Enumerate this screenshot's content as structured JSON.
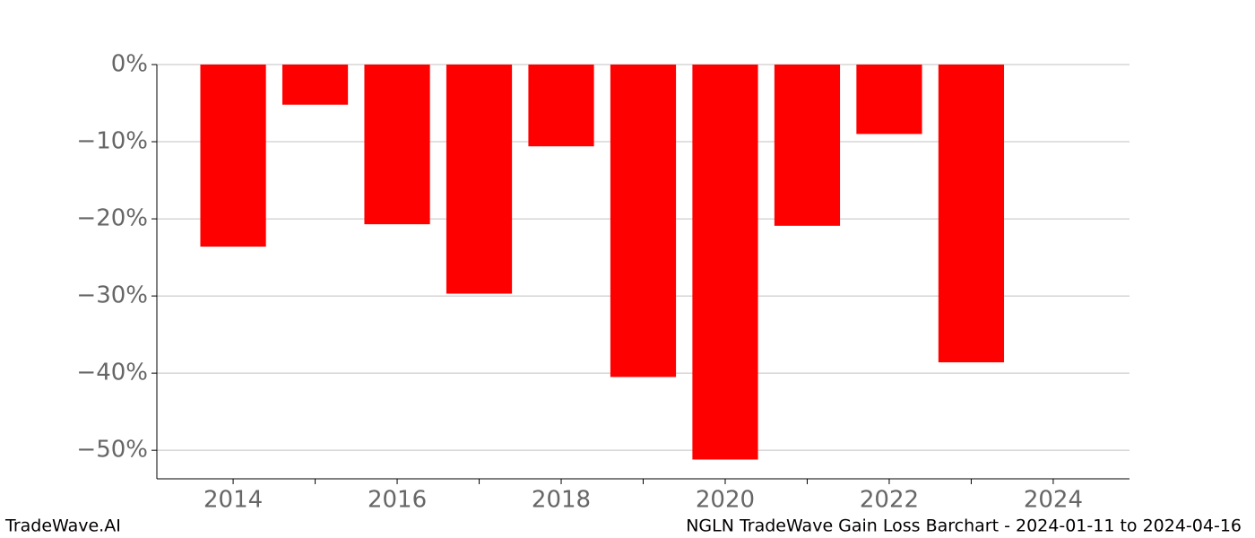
{
  "chart_data": {
    "type": "bar",
    "title": "NGLN TradeWave Gain Loss Barchart - 2024-01-11 to 2024-04-16",
    "brand": "TradeWave.AI",
    "x": [
      2014,
      2015,
      2016,
      2017,
      2018,
      2019,
      2020,
      2021,
      2022,
      2023
    ],
    "values": [
      -23.6,
      -5.2,
      -20.7,
      -29.7,
      -10.6,
      -40.5,
      -51.2,
      -20.9,
      -9.0,
      -38.6
    ],
    "color": "#ff0000",
    "xlim": [
      2013.07,
      2024.93
    ],
    "xticks": [
      2014,
      2016,
      2018,
      2020,
      2022,
      2024
    ],
    "xminor_ticks": [
      2015,
      2017,
      2019,
      2021,
      2023
    ],
    "ylim": [
      -53.7,
      0
    ],
    "yticks": [
      {
        "value": 0,
        "label": "0%"
      },
      {
        "value": -10,
        "label": "−10%"
      },
      {
        "value": -20,
        "label": "−20%"
      },
      {
        "value": -30,
        "label": "−30%"
      },
      {
        "value": -40,
        "label": "−40%"
      },
      {
        "value": -50,
        "label": "−50%"
      }
    ],
    "grid": true
  }
}
